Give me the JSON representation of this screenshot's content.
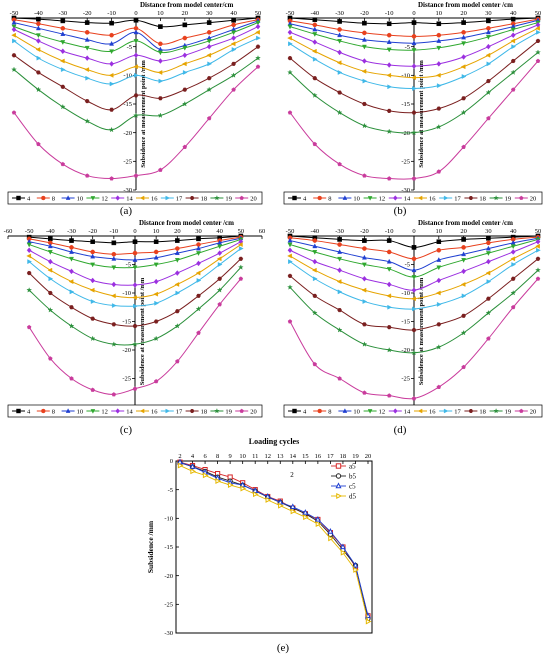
{
  "figure": {
    "panel_labels": [
      "(a)",
      "(b)",
      "(c)",
      "(d)",
      "(e)"
    ],
    "colors": {
      "4": "#000000",
      "8": "#e8411e",
      "10": "#1f3fd1",
      "12": "#2fa82f",
      "14": "#9b2fe0",
      "16": "#e6a400",
      "17": "#3fb8e8",
      "18": "#7a1f1f",
      "19": "#2a8f3a",
      "20": "#c93b9c"
    },
    "markers": {
      "4": "square",
      "8": "circle",
      "10": "triangle-up",
      "12": "triangle-down",
      "14": "diamond",
      "16": "triangle-left",
      "17": "triangle-right",
      "18": "hexagon",
      "19": "star",
      "20": "pentagon"
    }
  },
  "chart_data": [
    {
      "type": "line",
      "panel": "(a)",
      "xlabel": "Distance from model center/cm",
      "ylabel": "Subsidence at measurement point /mm",
      "xlim": [
        -50,
        50
      ],
      "ylim": [
        -30,
        0
      ],
      "xticks": [
        -50,
        -40,
        -30,
        -20,
        -10,
        0,
        10,
        20,
        30,
        40,
        50
      ],
      "yticks": [
        -5,
        -10,
        -15,
        -20,
        -25,
        -30
      ],
      "x": [
        -50,
        -40,
        -30,
        -20,
        -10,
        0,
        10,
        20,
        30,
        40,
        50
      ],
      "legend_position": "bottom",
      "series": [
        {
          "name": "4",
          "values": [
            0,
            -0.2,
            -0.5,
            -0.8,
            -0.9,
            -0.4,
            -1.5,
            -1.2,
            -0.8,
            -0.4,
            0
          ]
        },
        {
          "name": "8",
          "values": [
            -0.3,
            -1.0,
            -1.8,
            -2.5,
            -3.0,
            -1.8,
            -4.5,
            -3.5,
            -2.5,
            -1.2,
            -0.3
          ]
        },
        {
          "name": "10",
          "values": [
            -0.8,
            -1.8,
            -2.8,
            -3.8,
            -4.5,
            -2.5,
            -5.5,
            -4.8,
            -3.5,
            -2.0,
            -0.5
          ]
        },
        {
          "name": "12",
          "values": [
            -1.5,
            -3.0,
            -4.2,
            -5.2,
            -5.8,
            -4.0,
            -6.0,
            -5.2,
            -4.0,
            -2.5,
            -0.8
          ]
        },
        {
          "name": "14",
          "values": [
            -2.0,
            -4.0,
            -5.8,
            -7.0,
            -8.0,
            -6.5,
            -7.5,
            -6.5,
            -5.0,
            -3.5,
            -1.5
          ]
        },
        {
          "name": "16",
          "values": [
            -3.0,
            -5.5,
            -7.5,
            -9.0,
            -10.0,
            -8.5,
            -9.5,
            -8.0,
            -6.5,
            -4.5,
            -2.5
          ]
        },
        {
          "name": "17",
          "values": [
            -4.0,
            -7.0,
            -9.0,
            -10.5,
            -11.5,
            -10.0,
            -11.0,
            -9.5,
            -8.0,
            -5.5,
            -3.5
          ]
        },
        {
          "name": "18",
          "values": [
            -6.5,
            -9.5,
            -12.0,
            -14.5,
            -16.0,
            -13.5,
            -14.0,
            -12.5,
            -10.5,
            -8.0,
            -5.0
          ]
        },
        {
          "name": "19",
          "values": [
            -9.0,
            -12.5,
            -15.5,
            -18.0,
            -19.5,
            -17.0,
            -17.0,
            -15.0,
            -12.5,
            -10.0,
            -7.0
          ]
        },
        {
          "name": "20",
          "values": [
            -16.5,
            -22.0,
            -25.5,
            -27.5,
            -28.0,
            -27.5,
            -26.5,
            -22.5,
            -17.5,
            -12.5,
            -8.5
          ]
        }
      ]
    },
    {
      "type": "line",
      "panel": "(b)",
      "xlabel": "Distance from model center /cm",
      "ylabel": "Subsidence at measurement point /mm",
      "xlim": [
        -50,
        50
      ],
      "ylim": [
        -30,
        0
      ],
      "xticks": [
        -50,
        -40,
        -30,
        -20,
        -10,
        0,
        10,
        20,
        30,
        40,
        50
      ],
      "yticks": [
        -5,
        -10,
        -15,
        -20,
        -25,
        -30
      ],
      "x": [
        -50,
        -40,
        -30,
        -20,
        -10,
        0,
        10,
        20,
        30,
        40,
        50
      ],
      "legend_position": "bottom",
      "series": [
        {
          "name": "4",
          "values": [
            0,
            -0.3,
            -0.6,
            -0.9,
            -1.0,
            -0.8,
            -1.0,
            -0.8,
            -0.5,
            -0.2,
            0
          ]
        },
        {
          "name": "8",
          "values": [
            -0.5,
            -1.2,
            -2.0,
            -2.6,
            -3.0,
            -3.2,
            -3.0,
            -2.5,
            -1.8,
            -1.0,
            -0.2
          ]
        },
        {
          "name": "10",
          "values": [
            -1.0,
            -2.0,
            -3.0,
            -3.8,
            -4.2,
            -4.4,
            -4.0,
            -3.4,
            -2.5,
            -1.5,
            -0.4
          ]
        },
        {
          "name": "12",
          "values": [
            -1.5,
            -2.8,
            -4.0,
            -5.0,
            -5.5,
            -5.6,
            -5.2,
            -4.4,
            -3.3,
            -2.0,
            -0.8
          ]
        },
        {
          "name": "14",
          "values": [
            -2.5,
            -4.2,
            -6.0,
            -7.5,
            -8.2,
            -8.4,
            -8.0,
            -6.8,
            -5.0,
            -3.0,
            -1.2
          ]
        },
        {
          "name": "16",
          "values": [
            -3.5,
            -5.8,
            -7.8,
            -9.3,
            -10.0,
            -10.4,
            -10.0,
            -8.5,
            -6.5,
            -4.0,
            -1.8
          ]
        },
        {
          "name": "17",
          "values": [
            -4.5,
            -7.2,
            -9.5,
            -11.0,
            -12.0,
            -12.3,
            -11.8,
            -10.2,
            -8.0,
            -5.0,
            -2.5
          ]
        },
        {
          "name": "18",
          "values": [
            -7.0,
            -10.5,
            -13.0,
            -15.0,
            -16.2,
            -16.5,
            -15.8,
            -14.0,
            -11.0,
            -7.5,
            -4.0
          ]
        },
        {
          "name": "19",
          "values": [
            -9.5,
            -13.5,
            -16.5,
            -18.8,
            -19.8,
            -20.0,
            -19.0,
            -16.5,
            -13.0,
            -9.5,
            -6.0
          ]
        },
        {
          "name": "20",
          "values": [
            -16.5,
            -22.0,
            -25.5,
            -27.5,
            -28.0,
            -28.0,
            -26.8,
            -22.5,
            -17.5,
            -12.5,
            -7.5
          ]
        }
      ]
    },
    {
      "type": "line",
      "panel": "(c)",
      "xlabel": "Distance from model center /cm",
      "ylabel": "Subsidence at measurement point /mm",
      "xlim": [
        -60,
        60
      ],
      "ylim": [
        -30,
        0
      ],
      "xticks": [
        -60,
        -50,
        -40,
        -30,
        -20,
        -10,
        0,
        10,
        20,
        30,
        40,
        50,
        60
      ],
      "yticks": [
        -5,
        -10,
        -15,
        -20,
        -25,
        -30
      ],
      "x": [
        -50,
        -40,
        -30,
        -20,
        -10,
        0,
        10,
        20,
        30,
        40,
        50
      ],
      "legend_position": "bottom",
      "series": [
        {
          "name": "4",
          "values": [
            -0.2,
            -0.5,
            -0.8,
            -1.0,
            -1.2,
            -1.0,
            -1.0,
            -0.8,
            -0.5,
            -0.3,
            0
          ]
        },
        {
          "name": "8",
          "values": [
            -0.5,
            -1.2,
            -2.0,
            -2.8,
            -3.2,
            -3.0,
            -2.8,
            -2.2,
            -1.5,
            -0.8,
            -0.2
          ]
        },
        {
          "name": "10",
          "values": [
            -1.0,
            -1.8,
            -2.8,
            -3.6,
            -4.0,
            -4.2,
            -3.8,
            -3.0,
            -2.2,
            -1.2,
            -0.4
          ]
        },
        {
          "name": "12",
          "values": [
            -1.5,
            -2.8,
            -4.0,
            -5.0,
            -5.5,
            -5.5,
            -5.0,
            -4.2,
            -3.0,
            -1.8,
            -0.6
          ]
        },
        {
          "name": "14",
          "values": [
            -2.5,
            -4.5,
            -6.2,
            -7.8,
            -8.5,
            -8.6,
            -8.0,
            -6.5,
            -4.8,
            -3.0,
            -1.0
          ]
        },
        {
          "name": "16",
          "values": [
            -3.5,
            -6.0,
            -8.0,
            -9.5,
            -10.5,
            -10.8,
            -10.2,
            -8.5,
            -6.5,
            -4.0,
            -1.5
          ]
        },
        {
          "name": "17",
          "values": [
            -4.5,
            -7.5,
            -9.8,
            -11.5,
            -12.2,
            -12.3,
            -11.8,
            -10.0,
            -7.8,
            -5.0,
            -2.2
          ]
        },
        {
          "name": "18",
          "values": [
            -6.5,
            -10.0,
            -12.5,
            -14.5,
            -15.5,
            -15.8,
            -15.0,
            -13.2,
            -10.5,
            -7.5,
            -4.0
          ]
        },
        {
          "name": "19",
          "values": [
            -9.5,
            -13.0,
            -15.8,
            -18.0,
            -19.0,
            -19.0,
            -18.0,
            -15.8,
            -12.8,
            -9.5,
            -5.5
          ]
        },
        {
          "name": "20",
          "values": [
            -16.0,
            -21.5,
            -25.0,
            -27.0,
            -27.8,
            -26.8,
            -25.5,
            -22.0,
            -17.0,
            -12.0,
            -7.5
          ]
        }
      ]
    },
    {
      "type": "line",
      "panel": "(d)",
      "xlabel": "Distance from model center /cm",
      "ylabel": "Subsidence at measurement point /mm",
      "xlim": [
        -50,
        50
      ],
      "ylim": [
        -30,
        0
      ],
      "xticks": [
        -50,
        -40,
        -30,
        -20,
        -10,
        0,
        10,
        20,
        30,
        40,
        50
      ],
      "yticks": [
        -5,
        -10,
        -15,
        -20,
        -25,
        -30
      ],
      "x": [
        -50,
        -40,
        -30,
        -20,
        -10,
        0,
        10,
        20,
        30,
        40,
        50
      ],
      "legend_position": "bottom",
      "series": [
        {
          "name": "4",
          "values": [
            0,
            -0.3,
            -0.6,
            -0.8,
            -0.8,
            -2.0,
            -1.0,
            -0.6,
            -0.4,
            -0.2,
            0
          ]
        },
        {
          "name": "8",
          "values": [
            -0.3,
            -0.8,
            -1.5,
            -2.2,
            -2.8,
            -4.0,
            -2.5,
            -2.0,
            -1.2,
            -0.6,
            -0.2
          ]
        },
        {
          "name": "10",
          "values": [
            -0.8,
            -1.8,
            -2.8,
            -3.8,
            -4.5,
            -6.0,
            -4.2,
            -3.2,
            -2.2,
            -1.2,
            -0.4
          ]
        },
        {
          "name": "12",
          "values": [
            -1.5,
            -2.8,
            -4.0,
            -5.0,
            -5.8,
            -7.2,
            -5.5,
            -4.2,
            -3.0,
            -1.8,
            -0.6
          ]
        },
        {
          "name": "14",
          "values": [
            -2.5,
            -4.5,
            -6.0,
            -7.5,
            -8.5,
            -9.5,
            -7.8,
            -6.2,
            -4.5,
            -2.8,
            -1.0
          ]
        },
        {
          "name": "16",
          "values": [
            -3.5,
            -6.0,
            -8.0,
            -9.5,
            -10.5,
            -11.0,
            -10.0,
            -8.5,
            -6.5,
            -4.0,
            -1.8
          ]
        },
        {
          "name": "17",
          "values": [
            -4.5,
            -7.5,
            -9.8,
            -11.5,
            -12.5,
            -12.8,
            -12.0,
            -10.5,
            -8.0,
            -5.0,
            -2.5
          ]
        },
        {
          "name": "18",
          "values": [
            -7.0,
            -10.5,
            -13.0,
            -15.5,
            -16.0,
            -16.5,
            -15.5,
            -14.0,
            -11.0,
            -7.5,
            -4.0
          ]
        },
        {
          "name": "19",
          "values": [
            -9.0,
            -13.5,
            -16.5,
            -19.0,
            -20.0,
            -20.5,
            -19.5,
            -17.0,
            -13.5,
            -10.0,
            -6.0
          ]
        },
        {
          "name": "20",
          "values": [
            -15.0,
            -22.5,
            -25.0,
            -27.5,
            -28.0,
            -28.5,
            -26.5,
            -23.0,
            -18.0,
            -12.5,
            -7.5
          ]
        }
      ]
    },
    {
      "type": "line",
      "panel": "(e)",
      "title": "Loading cycles",
      "xlabel": "",
      "ylabel": "Subsidence /mm",
      "ylim": [
        -30,
        0
      ],
      "categories": [
        "2",
        "4",
        "6",
        "8",
        "9",
        "10",
        "11",
        "12",
        "13",
        "14",
        "15",
        "16",
        "17",
        "18",
        "19",
        "20"
      ],
      "annotation": "2",
      "yticks": [
        0,
        -5,
        -10,
        -15,
        -20,
        -25,
        -30
      ],
      "legend_position": "top-right",
      "series": [
        {
          "name": "a5",
          "values": [
            -0.2,
            -0.8,
            -1.5,
            -2.2,
            -2.8,
            -3.8,
            -5.0,
            -6.2,
            -7.0,
            -8.2,
            -9.2,
            -10.2,
            -12.5,
            -15.0,
            -18.5,
            -27.0
          ]
        },
        {
          "name": "b5",
          "values": [
            -0.3,
            -1.0,
            -1.8,
            -2.8,
            -3.5,
            -4.2,
            -5.2,
            -6.3,
            -7.2,
            -8.2,
            -9.2,
            -10.5,
            -12.8,
            -15.5,
            -18.2,
            -27.5
          ]
        },
        {
          "name": "c5",
          "values": [
            -0.2,
            -1.0,
            -2.0,
            -3.0,
            -3.8,
            -4.2,
            -5.2,
            -6.2,
            -7.2,
            -8.0,
            -9.0,
            -10.2,
            -12.3,
            -15.0,
            -18.2,
            -27.0
          ]
        },
        {
          "name": "d5",
          "values": [
            -0.8,
            -1.8,
            -2.5,
            -3.5,
            -4.2,
            -4.8,
            -5.8,
            -6.8,
            -7.8,
            -8.8,
            -9.8,
            -11.0,
            -13.5,
            -16.0,
            -19.0,
            -28.0
          ]
        }
      ],
      "colors": {
        "a5": "#d62728",
        "b5": "#222222",
        "c5": "#1f3fd1",
        "d5": "#e6b800"
      },
      "markers": {
        "a5": "square",
        "b5": "circle",
        "c5": "triangle-up",
        "d5": "triangle-right"
      }
    }
  ]
}
